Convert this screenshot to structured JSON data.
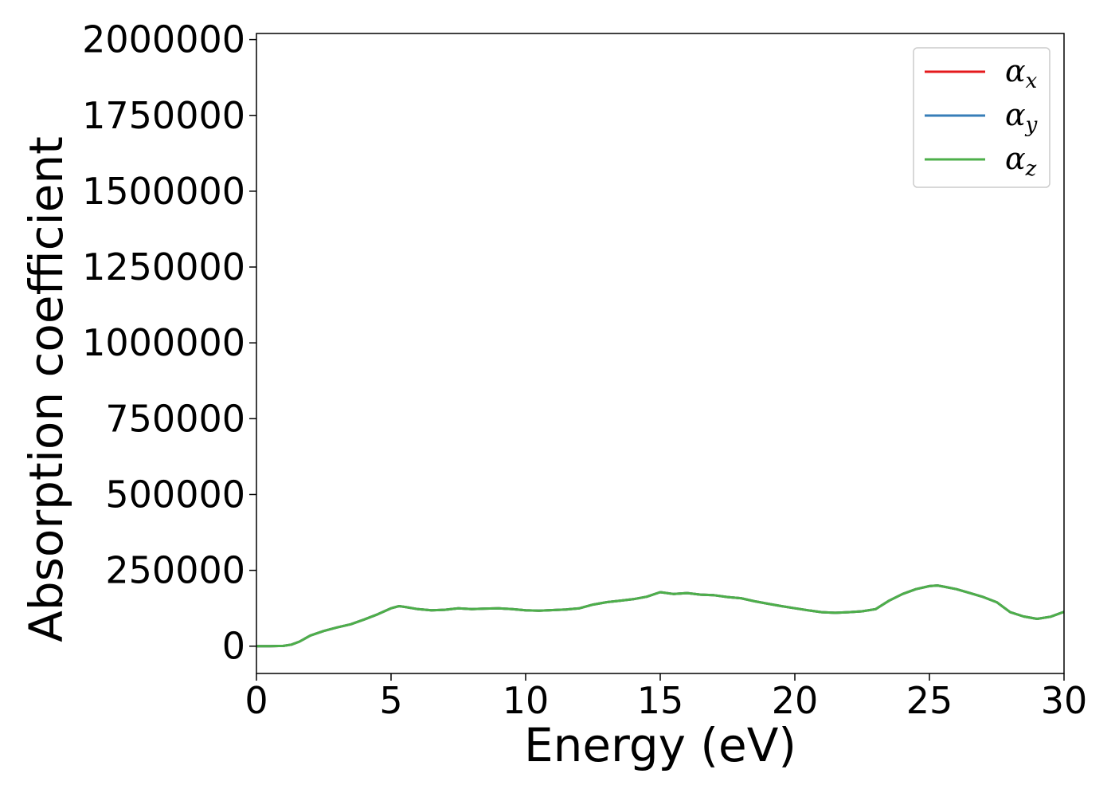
{
  "chart_data": {
    "type": "line",
    "xlabel": "Energy (eV)",
    "ylabel": "Absorption coefficient",
    "xlim": [
      0,
      30
    ],
    "ylim": [
      -90000,
      2020000
    ],
    "xticks": [
      0,
      5,
      10,
      15,
      20,
      25,
      30
    ],
    "yticks": [
      0,
      250000,
      500000,
      750000,
      1000000,
      1250000,
      1500000,
      1750000,
      2000000
    ],
    "grid": false,
    "legend_position": "top-right",
    "series": [
      {
        "name": "x",
        "color": "#e41a1c",
        "x": [
          0,
          0.5,
          1.0,
          1.3,
          1.6,
          2.0,
          2.5,
          3.0,
          3.5,
          4.0,
          4.5,
          5.0,
          5.3,
          5.6,
          6.0,
          6.5,
          7.0,
          7.5,
          8.0,
          8.5,
          9.0,
          9.5,
          10.0,
          10.5,
          11.0,
          11.5,
          12.0,
          12.5,
          13.0,
          13.5,
          14.0,
          14.5,
          15.0,
          15.5,
          16.0,
          16.5,
          17.0,
          17.5,
          18.0,
          18.5,
          19.0,
          19.5,
          20.0,
          20.5,
          21.0,
          21.5,
          22.0,
          22.5,
          23.0,
          23.5,
          24.0,
          24.5,
          25.0,
          25.3,
          25.6,
          26.0,
          26.5,
          27.0,
          27.5,
          28.0,
          28.5,
          29.0,
          29.5,
          30.0
        ],
        "y": [
          0,
          0,
          1000,
          5000,
          15000,
          35000,
          50000,
          62000,
          72000,
          88000,
          105000,
          125000,
          132000,
          128000,
          122000,
          118000,
          120000,
          125000,
          122000,
          124000,
          125000,
          122000,
          118000,
          117000,
          119000,
          121000,
          125000,
          137000,
          145000,
          150000,
          155000,
          163000,
          178000,
          172000,
          175000,
          170000,
          168000,
          162000,
          158000,
          148000,
          140000,
          132000,
          125000,
          118000,
          112000,
          110000,
          112000,
          115000,
          122000,
          150000,
          172000,
          188000,
          198000,
          200000,
          195000,
          188000,
          175000,
          162000,
          145000,
          112000,
          98000,
          90000,
          97000,
          113000
        ]
      },
      {
        "name": "y",
        "color": "#377eb8",
        "x": [
          0,
          0.5,
          1.0,
          1.3,
          1.6,
          2.0,
          2.5,
          3.0,
          3.5,
          4.0,
          4.5,
          5.0,
          5.3,
          5.6,
          6.0,
          6.5,
          7.0,
          7.5,
          8.0,
          8.5,
          9.0,
          9.5,
          10.0,
          10.5,
          11.0,
          11.5,
          12.0,
          12.5,
          13.0,
          13.5,
          14.0,
          14.5,
          15.0,
          15.5,
          16.0,
          16.5,
          17.0,
          17.5,
          18.0,
          18.5,
          19.0,
          19.5,
          20.0,
          20.5,
          21.0,
          21.5,
          22.0,
          22.5,
          23.0,
          23.5,
          24.0,
          24.5,
          25.0,
          25.3,
          25.6,
          26.0,
          26.5,
          27.0,
          27.5,
          28.0,
          28.5,
          29.0,
          29.5,
          30.0
        ],
        "y": [
          0,
          0,
          1000,
          5000,
          15000,
          35000,
          50000,
          62000,
          72000,
          88000,
          105000,
          125000,
          132000,
          128000,
          122000,
          118000,
          120000,
          125000,
          122000,
          124000,
          125000,
          122000,
          118000,
          117000,
          119000,
          121000,
          125000,
          137000,
          145000,
          150000,
          155000,
          163000,
          178000,
          172000,
          175000,
          170000,
          168000,
          162000,
          158000,
          148000,
          140000,
          132000,
          125000,
          118000,
          112000,
          110000,
          112000,
          115000,
          122000,
          150000,
          172000,
          188000,
          198000,
          200000,
          195000,
          188000,
          175000,
          162000,
          145000,
          112000,
          98000,
          90000,
          97000,
          113000
        ]
      },
      {
        "name": "z",
        "color": "#4daf4a",
        "x": [
          0,
          0.5,
          1.0,
          1.3,
          1.6,
          2.0,
          2.5,
          3.0,
          3.5,
          4.0,
          4.5,
          5.0,
          5.3,
          5.6,
          6.0,
          6.5,
          7.0,
          7.5,
          8.0,
          8.5,
          9.0,
          9.5,
          10.0,
          10.5,
          11.0,
          11.5,
          12.0,
          12.5,
          13.0,
          13.5,
          14.0,
          14.5,
          15.0,
          15.5,
          16.0,
          16.5,
          17.0,
          17.5,
          18.0,
          18.5,
          19.0,
          19.5,
          20.0,
          20.5,
          21.0,
          21.5,
          22.0,
          22.5,
          23.0,
          23.5,
          24.0,
          24.5,
          25.0,
          25.3,
          25.6,
          26.0,
          26.5,
          27.0,
          27.5,
          28.0,
          28.5,
          29.0,
          29.5,
          30.0
        ],
        "y": [
          0,
          0,
          1000,
          5000,
          15000,
          35000,
          50000,
          62000,
          72000,
          88000,
          105000,
          125000,
          132000,
          128000,
          122000,
          118000,
          120000,
          125000,
          122000,
          124000,
          125000,
          122000,
          118000,
          117000,
          119000,
          121000,
          125000,
          137000,
          145000,
          150000,
          155000,
          163000,
          178000,
          172000,
          175000,
          170000,
          168000,
          162000,
          158000,
          148000,
          140000,
          132000,
          125000,
          118000,
          112000,
          110000,
          112000,
          115000,
          122000,
          150000,
          172000,
          188000,
          198000,
          200000,
          195000,
          188000,
          175000,
          162000,
          145000,
          112000,
          98000,
          90000,
          97000,
          113000
        ]
      }
    ],
    "legend_symbol": "α"
  }
}
